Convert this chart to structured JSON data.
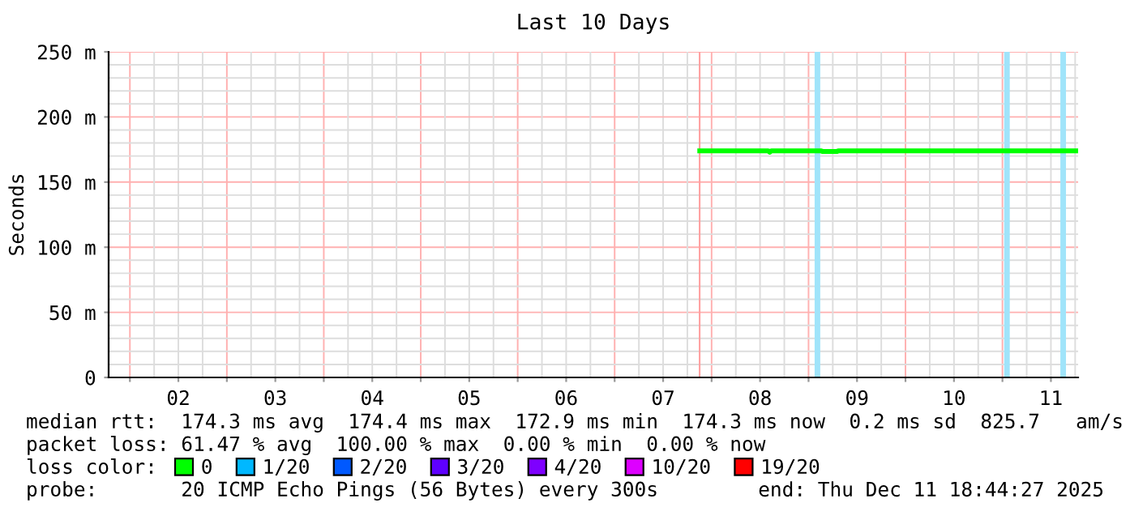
{
  "chart_data": {
    "type": "line",
    "title": "Last 10 Days",
    "ylabel": "Seconds",
    "xlim": [
      "2025-12-01T18:44",
      "2025-12-11T18:44"
    ],
    "xticks": [
      {
        "value": "2025-12-02T00:00",
        "label": null
      },
      {
        "value": "2025-12-02T12:00",
        "label": "02"
      },
      {
        "value": "2025-12-03T00:00",
        "label": null
      },
      {
        "value": "2025-12-03T12:00",
        "label": "03"
      },
      {
        "value": "2025-12-04T00:00",
        "label": null
      },
      {
        "value": "2025-12-04T12:00",
        "label": "04"
      },
      {
        "value": "2025-12-05T00:00",
        "label": null
      },
      {
        "value": "2025-12-05T12:00",
        "label": "05"
      },
      {
        "value": "2025-12-06T00:00",
        "label": null
      },
      {
        "value": "2025-12-06T12:00",
        "label": "06"
      },
      {
        "value": "2025-12-07T00:00",
        "label": null
      },
      {
        "value": "2025-12-07T12:00",
        "label": "07"
      },
      {
        "value": "2025-12-08T00:00",
        "label": null
      },
      {
        "value": "2025-12-08T12:00",
        "label": "08"
      },
      {
        "value": "2025-12-09T00:00",
        "label": null
      },
      {
        "value": "2025-12-09T12:00",
        "label": "09"
      },
      {
        "value": "2025-12-10T00:00",
        "label": null
      },
      {
        "value": "2025-12-10T12:00",
        "label": "10"
      },
      {
        "value": "2025-12-11T00:00",
        "label": null
      },
      {
        "value": "2025-12-11T12:00",
        "label": "11"
      }
    ],
    "ylim": [
      0,
      250
    ],
    "yticks": [
      0,
      {
        "value": 50,
        "label": "50 m"
      },
      {
        "value": 100,
        "label": "100 m"
      },
      {
        "value": 150,
        "label": "150 m"
      },
      {
        "value": 200,
        "label": "200 m"
      },
      {
        "value": 250,
        "label": "250 m"
      }
    ],
    "grid": true,
    "legend": "bottom",
    "legend_title": "loss color:",
    "series": [
      {
        "name": "0",
        "color": "#00ff00",
        "x": [
          "2025-12-07T21:05",
          "2025-12-08T14:00",
          "2025-12-08T14:24",
          "2025-12-08T14:48",
          "2025-12-09T03:00",
          "2025-12-09T03:30",
          "2025-12-09T07:00",
          "2025-12-09T07:30",
          "2025-12-11T18:44"
        ],
        "values": [
          174,
          174,
          173,
          174,
          174,
          173.5,
          173.5,
          174,
          174
        ]
      },
      {
        "name": "1/20",
        "color": "#00b8ff"
      },
      {
        "name": "2/20",
        "color": "#0059ff"
      },
      {
        "name": "3/20",
        "color": "#5e00ff"
      },
      {
        "name": "4/20",
        "color": "#7e00ff"
      },
      {
        "name": "10/20",
        "color": "#dd00ff"
      },
      {
        "name": "19/20",
        "color": "#ff0000"
      }
    ],
    "bands": [
      {
        "axis": "x",
        "from": "2025-12-07T20:50",
        "to": "2025-12-07T21:15",
        "color": "#ff9f9f"
      }
    ],
    "ref_lines": [
      {
        "axis": "x",
        "value": "2025-12-09T02:12",
        "color": "#a0e4fa"
      },
      {
        "axis": "x",
        "value": "2025-12-11T01:07",
        "color": "#a0e4fa"
      },
      {
        "axis": "x",
        "value": "2025-12-11T15:02",
        "color": "#a0e4fa"
      }
    ],
    "annotations": [
      "median rtt:  174.3 ms avg  174.4 ms max  172.9 ms min  174.3 ms now  0.2 ms sd  825.7   am/s",
      "packet loss: 61.47 % avg  100.00 % max  0.00 % min  0.00 % now",
      "probe:       20 ICMP Echo Pings (56 Bytes) every 300s",
      "end: Thu Dec 11 18:44:27 2025"
    ]
  }
}
